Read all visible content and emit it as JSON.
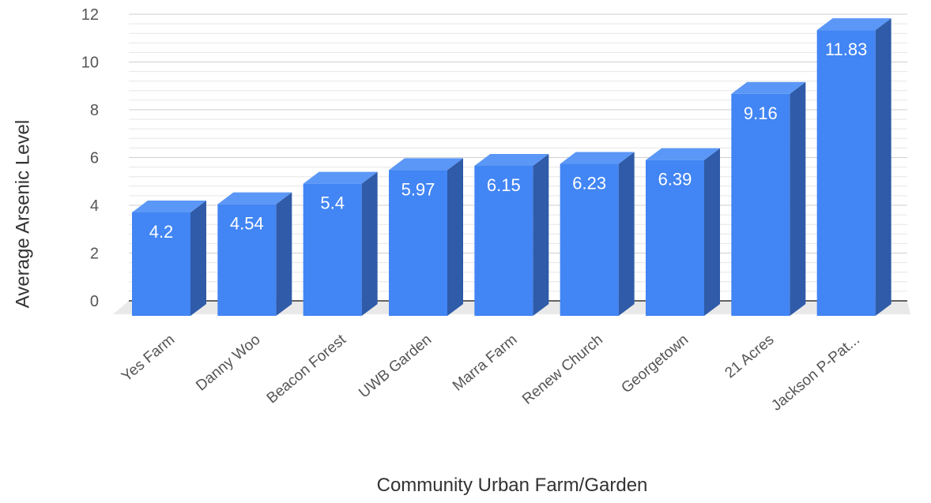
{
  "chart_data": {
    "type": "bar",
    "style": "3d-column",
    "xlabel": "Community Urban Farm/Garden",
    "ylabel": "Average Arsenic Level",
    "ylim": [
      0,
      12
    ],
    "yticks": [
      0,
      2,
      4,
      6,
      8,
      10,
      12
    ],
    "grid": true,
    "legend": "none",
    "categories": [
      "Yes Farm",
      "Danny Woo",
      "Beacon Forest",
      "UWB Garden",
      "Marra Farm",
      "Renew Church",
      "Georgetown",
      "21 Acres",
      "Jackson P-Pat..."
    ],
    "values": [
      4.2,
      4.54,
      5.4,
      5.97,
      6.15,
      6.23,
      6.39,
      9.16,
      11.83
    ],
    "data_labels": [
      "4.2",
      "4.54",
      "5.4",
      "5.97",
      "6.15",
      "6.23",
      "6.39",
      "9.16",
      "11.83"
    ],
    "colors": {
      "bar_front": "#4285f4",
      "bar_top": "#5b97f6",
      "bar_side": "#2f5ba8",
      "floor": "#e9e9e9",
      "grid": "#e6e6e6",
      "baseline": "#333333"
    }
  }
}
